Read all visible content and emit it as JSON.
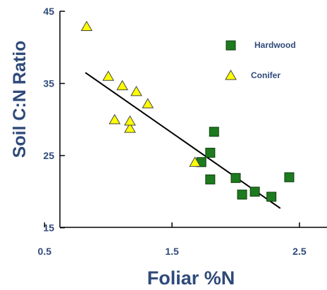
{
  "colors": {
    "axis_text": "#2f4a79",
    "hardwood_fill": "#1e7a1e",
    "hardwood_stroke": "#0e3f0e",
    "conifer_fill": "#ffff00",
    "conifer_stroke": "#444444",
    "trend": "#000000"
  },
  "chart_data": {
    "type": "scatter",
    "title": "",
    "xlabel": "Foliar %N",
    "ylabel": "Soil C:N Ratio",
    "xlim": [
      0.4,
      3.0
    ],
    "ylim": [
      15,
      45
    ],
    "xticks": [
      "0.5",
      "1.5",
      "2.5"
    ],
    "yticks": [
      "15",
      "25",
      "35",
      "45"
    ],
    "grid": false,
    "legend_position": "top-right",
    "series": [
      {
        "name": "Hardwood",
        "marker": "square",
        "points": [
          [
            1.73,
            24.1
          ],
          [
            1.8,
            25.4
          ],
          [
            1.83,
            28.3
          ],
          [
            1.8,
            21.7
          ],
          [
            2.0,
            21.9
          ],
          [
            2.05,
            19.6
          ],
          [
            2.15,
            20.0
          ],
          [
            2.28,
            19.3
          ],
          [
            2.42,
            22.0
          ]
        ]
      },
      {
        "name": "Conifer",
        "marker": "triangle",
        "points": [
          [
            0.83,
            42.8
          ],
          [
            1.0,
            35.9
          ],
          [
            1.05,
            29.9
          ],
          [
            1.11,
            34.6
          ],
          [
            1.17,
            28.7
          ],
          [
            1.17,
            29.7
          ],
          [
            1.22,
            33.8
          ],
          [
            1.31,
            32.1
          ],
          [
            1.68,
            24.0
          ]
        ]
      }
    ],
    "trendline": {
      "x": [
        0.82,
        2.35
      ],
      "y": [
        36.5,
        17.7
      ]
    }
  }
}
